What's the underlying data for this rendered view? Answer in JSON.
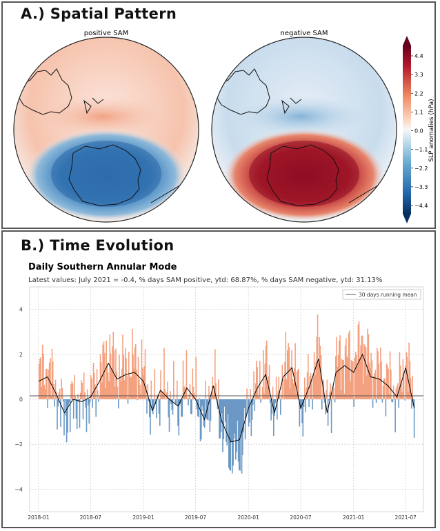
{
  "panel_a": {
    "title": "A.) Spatial Pattern",
    "map_left_title": "positive SAM",
    "map_right_title": "negative SAM",
    "colorbar": {
      "label": "SLP anomalies (hPa)",
      "ticks": [
        "4.4",
        "3.3",
        "2.2",
        "1.1",
        "0.0",
        "−1.1",
        "−2.2",
        "−3.3",
        "−4.4"
      ],
      "colors": {
        "max": "#67001f",
        "high": "#b2182b",
        "mid_high": "#ef8a62",
        "zero": "#f7f7f7",
        "mid_low": "#67a9cf",
        "low": "#2166ac",
        "min": "#053061"
      }
    }
  },
  "panel_b": {
    "title": "B.) Time Evolution"
  },
  "chart_data": {
    "type": "area",
    "title": "Daily Southern Annular Mode",
    "subtitle": "Latest values: July 2021 = -0.4, % days SAM positive, ytd: 68.87%, % days SAM negative, ytd: 31.13%",
    "legend": {
      "entry": "30 days running mean",
      "placement": "top-right"
    },
    "xlabel": "",
    "ylabel": "",
    "x_tick_labels": [
      "2018-01",
      "2018-07",
      "2019-01",
      "2019-07",
      "2020-01",
      "2020-07",
      "2021-01",
      "2021-07"
    ],
    "y_tick_labels": [
      "4",
      "2",
      "0",
      "−2",
      "−4"
    ],
    "y_ticks": [
      4,
      2,
      0,
      -2,
      -4
    ],
    "xlim": [
      "2017-12-01",
      "2021-09-01"
    ],
    "ylim": [
      -5,
      5
    ],
    "grid": true,
    "colors": {
      "positive": "#f4a17f",
      "negative": "#6b98c4",
      "running_mean": "#000000"
    },
    "series": [
      {
        "name": "30 days running mean",
        "x": [
          "2018-01-01",
          "2018-02-01",
          "2018-03-01",
          "2018-04-01",
          "2018-05-01",
          "2018-06-01",
          "2018-07-01",
          "2018-08-01",
          "2018-09-01",
          "2018-10-01",
          "2018-11-01",
          "2018-12-01",
          "2019-01-01",
          "2019-02-01",
          "2019-03-01",
          "2019-04-01",
          "2019-05-01",
          "2019-06-01",
          "2019-07-01",
          "2019-08-01",
          "2019-09-01",
          "2019-10-01",
          "2019-11-01",
          "2019-12-01",
          "2020-01-01",
          "2020-02-01",
          "2020-03-01",
          "2020-04-01",
          "2020-05-01",
          "2020-06-01",
          "2020-07-01",
          "2020-08-01",
          "2020-09-01",
          "2020-10-01",
          "2020-11-01",
          "2020-12-01",
          "2021-01-01",
          "2021-02-01",
          "2021-03-01",
          "2021-04-01",
          "2021-05-01",
          "2021-06-01",
          "2021-07-01",
          "2021-07-31"
        ],
        "values": [
          0.8,
          1.0,
          0.3,
          -0.6,
          0.0,
          -0.1,
          0.1,
          0.8,
          1.6,
          0.9,
          1.1,
          1.2,
          0.8,
          -0.5,
          0.4,
          0.0,
          -0.3,
          0.5,
          0.0,
          -0.9,
          0.6,
          -1.0,
          -1.9,
          -1.8,
          -0.4,
          0.5,
          1.1,
          -0.6,
          1.0,
          1.4,
          -0.4,
          0.6,
          1.8,
          -0.6,
          1.2,
          1.5,
          1.2,
          2.0,
          1.0,
          0.9,
          0.6,
          0.1,
          1.4,
          -0.4
        ]
      }
    ]
  }
}
